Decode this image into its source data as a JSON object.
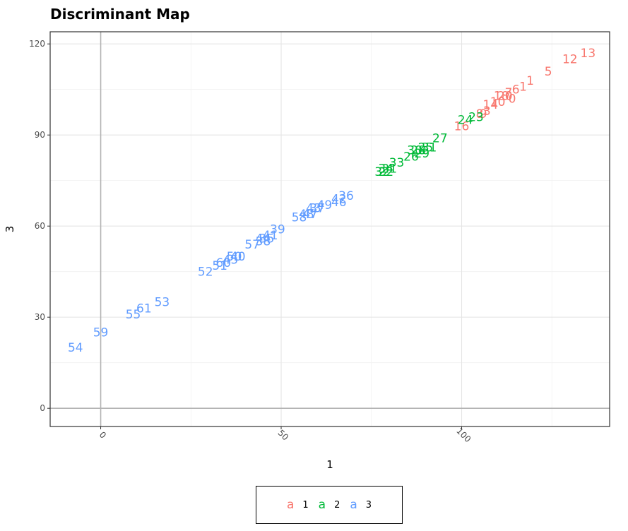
{
  "chart_data": {
    "type": "scatter",
    "title": "Discriminant Map",
    "xlabel": "1",
    "ylabel": "3",
    "xlim": [
      -14,
      141
    ],
    "ylim": [
      -6,
      124
    ],
    "x_ticks": [
      0,
      50,
      100
    ],
    "y_ticks": [
      0,
      30,
      60,
      90,
      120
    ],
    "x_minor": [
      -25,
      25,
      75,
      125
    ],
    "y_minor": [
      15,
      45,
      75,
      105
    ],
    "grid": true,
    "reference_lines": {
      "x": 0,
      "y": 0
    },
    "legend_position": "bottom",
    "legend_key_glyph": "a",
    "series": [
      {
        "name": "1",
        "color": "#F8766D",
        "points": [
          {
            "label": "13",
            "x": 135,
            "y": 117
          },
          {
            "label": "12",
            "x": 130,
            "y": 115
          },
          {
            "label": "5",
            "x": 124,
            "y": 111
          },
          {
            "label": "1",
            "x": 119,
            "y": 108
          },
          {
            "label": "1",
            "x": 117,
            "y": 106
          },
          {
            "label": "6",
            "x": 115,
            "y": 105
          },
          {
            "label": "7",
            "x": 113,
            "y": 104
          },
          {
            "label": "18",
            "x": 111,
            "y": 103
          },
          {
            "label": "0",
            "x": 114,
            "y": 102
          },
          {
            "label": "20",
            "x": 112,
            "y": 103
          },
          {
            "label": "10",
            "x": 110,
            "y": 101
          },
          {
            "label": "14",
            "x": 108,
            "y": 100
          },
          {
            "label": "3",
            "x": 107,
            "y": 98
          },
          {
            "label": "9",
            "x": 106,
            "y": 97
          },
          {
            "label": "8",
            "x": 105,
            "y": 97
          },
          {
            "label": "16",
            "x": 100,
            "y": 93
          }
        ]
      },
      {
        "name": "2",
        "color": "#00BA38",
        "points": [
          {
            "label": "23",
            "x": 104,
            "y": 96
          },
          {
            "label": "24",
            "x": 101,
            "y": 95
          },
          {
            "label": "27",
            "x": 94,
            "y": 89
          },
          {
            "label": "31",
            "x": 91,
            "y": 86
          },
          {
            "label": "25",
            "x": 90,
            "y": 86
          },
          {
            "label": "28",
            "x": 88,
            "y": 85
          },
          {
            "label": "30",
            "x": 87,
            "y": 85
          },
          {
            "label": "29",
            "x": 89,
            "y": 84
          },
          {
            "label": "26",
            "x": 86,
            "y": 83
          },
          {
            "label": "33",
            "x": 82,
            "y": 81
          },
          {
            "label": "34",
            "x": 79,
            "y": 79
          },
          {
            "label": "21",
            "x": 80,
            "y": 79
          },
          {
            "label": "22",
            "x": 79,
            "y": 78
          },
          {
            "label": "32",
            "x": 78,
            "y": 78
          }
        ]
      },
      {
        "name": "3",
        "color": "#619CFF",
        "points": [
          {
            "label": "36",
            "x": 68,
            "y": 70
          },
          {
            "label": "42",
            "x": 66,
            "y": 69
          },
          {
            "label": "46",
            "x": 66,
            "y": 68
          },
          {
            "label": "49",
            "x": 62,
            "y": 67
          },
          {
            "label": "37",
            "x": 60,
            "y": 66
          },
          {
            "label": "43",
            "x": 59,
            "y": 66
          },
          {
            "label": "47",
            "x": 58,
            "y": 64
          },
          {
            "label": "48",
            "x": 57,
            "y": 64
          },
          {
            "label": "58",
            "x": 55,
            "y": 63
          },
          {
            "label": "39",
            "x": 49,
            "y": 59
          },
          {
            "label": "41",
            "x": 47,
            "y": 57
          },
          {
            "label": "44",
            "x": 45,
            "y": 56
          },
          {
            "label": "35",
            "x": 46,
            "y": 56
          },
          {
            "label": "38",
            "x": 45,
            "y": 55
          },
          {
            "label": "57",
            "x": 42,
            "y": 54
          },
          {
            "label": "40",
            "x": 38,
            "y": 50
          },
          {
            "label": "45",
            "x": 36,
            "y": 49
          },
          {
            "label": "50",
            "x": 37,
            "y": 50
          },
          {
            "label": "60",
            "x": 34,
            "y": 48
          },
          {
            "label": "51",
            "x": 33,
            "y": 47
          },
          {
            "label": "52",
            "x": 29,
            "y": 45
          },
          {
            "label": "53",
            "x": 17,
            "y": 35
          },
          {
            "label": "61",
            "x": 12,
            "y": 33
          },
          {
            "label": "55",
            "x": 9,
            "y": 31
          },
          {
            "label": "59",
            "x": 0,
            "y": 25
          },
          {
            "label": "54",
            "x": -7,
            "y": 20
          }
        ]
      }
    ]
  }
}
